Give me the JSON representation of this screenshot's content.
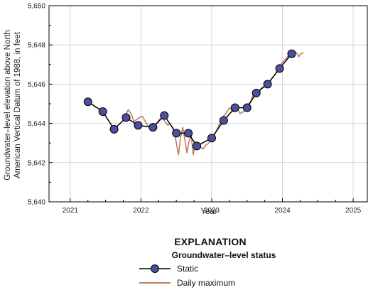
{
  "chart_data": {
    "type": "line",
    "title": "",
    "xlabel": "Year",
    "ylabel_line1": "Groundwater–level elevation above North",
    "ylabel_line2": "American Vertical Datum of 1988, in feet",
    "xlim": [
      2020.7,
      2025.2
    ],
    "ylim": [
      5640,
      5650
    ],
    "x_ticks": [
      2021,
      2022,
      2023,
      2024,
      2025
    ],
    "y_ticks": [
      5640,
      5642,
      5644,
      5646,
      5648,
      5650
    ],
    "y_tick_labels": [
      "5,640",
      "5,642",
      "5,644",
      "5,646",
      "5,648",
      "5,650"
    ],
    "grid": true,
    "series": [
      {
        "name": "Static",
        "color": "#000000",
        "marker_color": "#4a4f9e",
        "x": [
          2021.25,
          2021.46,
          2021.62,
          2021.79,
          2021.96,
          2022.17,
          2022.33,
          2022.5,
          2022.67,
          2022.79,
          2023.0,
          2023.17,
          2023.33,
          2023.5,
          2023.63,
          2023.79,
          2023.96,
          2024.13
        ],
        "values": [
          5645.1,
          5644.6,
          5643.7,
          5644.3,
          5643.9,
          5643.8,
          5644.4,
          5643.5,
          5643.5,
          5642.85,
          5643.25,
          5644.15,
          5644.8,
          5644.8,
          5645.55,
          5646.0,
          5646.8,
          5647.55
        ]
      },
      {
        "name": "Daily maximum",
        "color": "#c07d5c",
        "x": [
          2021.78,
          2021.82,
          2021.86,
          2021.9,
          2021.94,
          2021.98,
          2022.02,
          2022.06,
          2022.1,
          2022.14,
          2022.18,
          2022.22,
          2022.26,
          2022.3,
          2022.34,
          2022.38,
          2022.41,
          2022.44,
          2022.47,
          2022.5,
          2022.53,
          2022.56,
          2022.59,
          2022.62,
          2022.65,
          2022.68,
          2022.71,
          2022.74,
          2022.77,
          2022.8,
          2022.84,
          2022.88,
          2022.92,
          2022.96,
          2023.0,
          2023.05,
          2023.1,
          2023.15,
          2023.2,
          2023.25,
          2023.3,
          2023.35,
          2023.4,
          2023.45,
          2023.5,
          2023.55,
          2023.6,
          2023.65,
          2023.7,
          2023.75,
          2023.8,
          2023.85,
          2023.9,
          2023.95,
          2024.0,
          2024.05,
          2024.1,
          2024.15,
          2024.2,
          2024.23,
          2024.26,
          2024.3
        ],
        "values": [
          5644.4,
          5644.7,
          5644.5,
          5644.1,
          5644.2,
          5644.3,
          5644.35,
          5644.1,
          5643.85,
          5643.8,
          5643.9,
          5644.0,
          5644.2,
          5644.3,
          5644.1,
          5643.9,
          5644.0,
          5643.8,
          5643.6,
          5643.0,
          5642.4,
          5643.3,
          5643.8,
          5643.2,
          5642.5,
          5643.1,
          5643.4,
          5642.4,
          5643.0,
          5642.9,
          5642.8,
          5642.7,
          5642.9,
          5643.0,
          5643.3,
          5643.5,
          5643.9,
          5644.3,
          5644.5,
          5644.8,
          5644.6,
          5644.9,
          5644.5,
          5644.6,
          5644.9,
          5645.1,
          5645.6,
          5645.4,
          5645.8,
          5645.9,
          5646.0,
          5646.3,
          5646.5,
          5646.9,
          5647.1,
          5647.3,
          5647.5,
          5647.7,
          5647.6,
          5647.4,
          5647.55,
          5647.6
        ]
      }
    ]
  },
  "legend": {
    "title": "EXPLANATION",
    "subtitle": "Groundwater–level status",
    "items": [
      {
        "label": "Static"
      },
      {
        "label": "Daily maximum"
      }
    ]
  }
}
